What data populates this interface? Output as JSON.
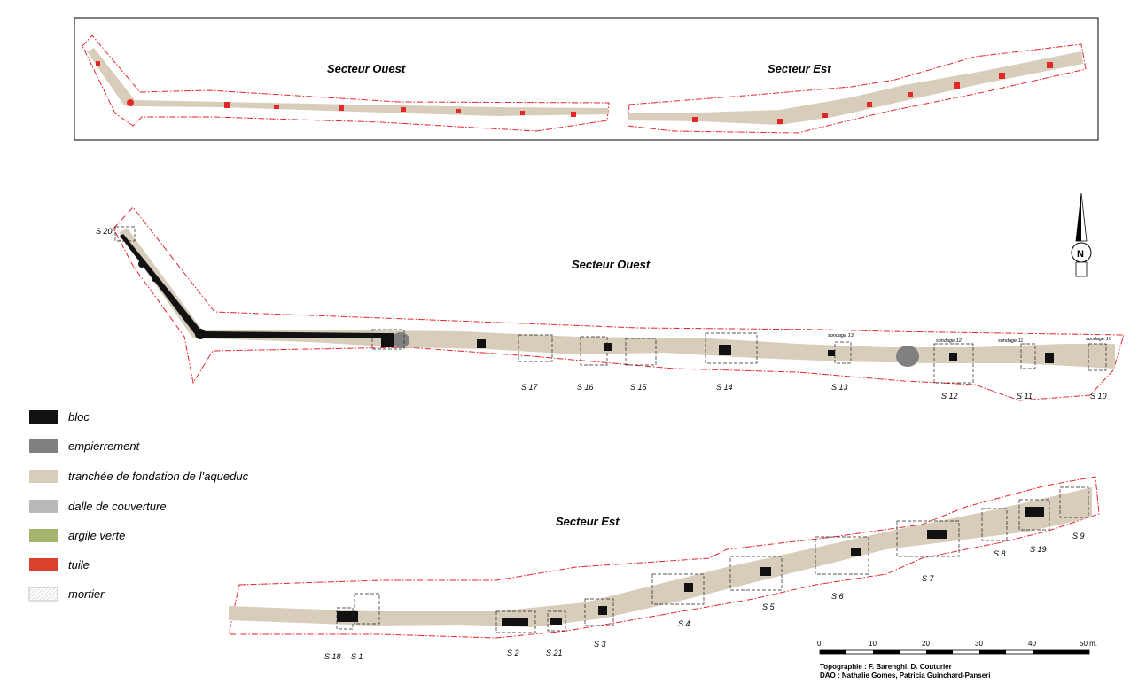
{
  "overview": {
    "west_label": "Secteur Ouest",
    "east_label": "Secteur Est"
  },
  "west": {
    "title": "Secteur Ouest",
    "soundings": [
      "S 20",
      "S 17",
      "S 16",
      "S 15",
      "S 14",
      "S 13",
      "S 12",
      "S 11",
      "S 10"
    ],
    "sondage_labels": [
      "sondage 13",
      "sondage 12",
      "sondage 11",
      "sondage 10"
    ]
  },
  "east": {
    "title": "Secteur Est",
    "soundings": [
      "S 18",
      "S 1",
      "S 2",
      "S 21",
      "S 3",
      "S 4",
      "S 5",
      "S 6",
      "S 7",
      "S 8",
      "S 19",
      "S 9"
    ]
  },
  "north_arrow": {
    "label": "N"
  },
  "legend": [
    {
      "label": "bloc",
      "color": "#111111",
      "icon": "swatch-bloc"
    },
    {
      "label": "empierrement",
      "color": "#808080",
      "icon": "swatch-empierrement"
    },
    {
      "label": "tranchée de fondation de l’aqueduc",
      "color": "#d8ccbb",
      "icon": "swatch-tranchee"
    },
    {
      "label": "dalle de couverture",
      "color": "#b9b9b9",
      "icon": "swatch-dalle"
    },
    {
      "label": "argile verte",
      "color": "#a3b56a",
      "icon": "swatch-argile"
    },
    {
      "label": "tuile",
      "color": "#d9412c",
      "icon": "swatch-tuile"
    },
    {
      "label": "mortier",
      "color": "#e6e6e6",
      "icon": "swatch-mortier"
    }
  ],
  "scale": {
    "ticks": [
      "0",
      "10",
      "20",
      "30",
      "40",
      "50 m."
    ]
  },
  "credits": {
    "topographie": "Topographie : F. Barenghi, D. Couturier",
    "dao": "DAO : Nathalie Gomes, Patricia Guinchard-Panseri"
  }
}
